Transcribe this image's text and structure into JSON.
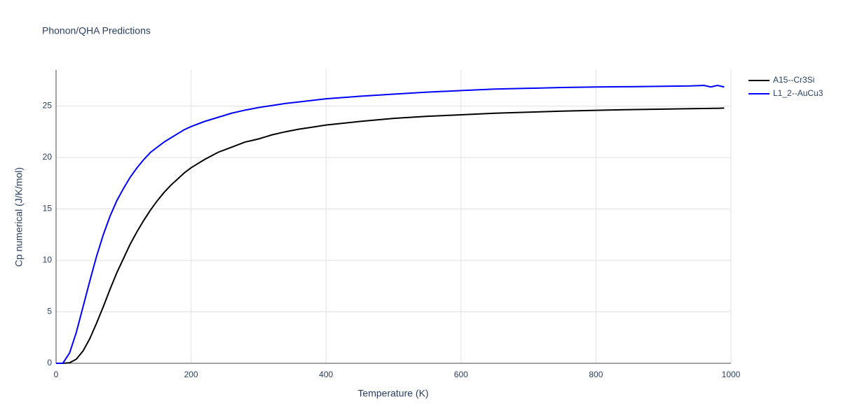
{
  "chart_data": {
    "type": "line",
    "title": "Phonon/QHA Predictions",
    "xlabel": "Temperature (K)",
    "ylabel": "Cp numerical (J/K/mol)",
    "x": [
      0,
      10,
      20,
      30,
      40,
      50,
      60,
      70,
      80,
      90,
      100,
      110,
      120,
      130,
      140,
      150,
      160,
      170,
      180,
      190,
      200,
      220,
      240,
      260,
      280,
      300,
      320,
      340,
      360,
      380,
      400,
      450,
      500,
      550,
      600,
      650,
      700,
      750,
      800,
      850,
      900,
      940,
      960,
      970,
      980,
      990
    ],
    "series": [
      {
        "name": "A15--Cr3Si",
        "color": "#000000",
        "values": [
          0,
          0,
          0.05,
          0.4,
          1.2,
          2.4,
          3.9,
          5.5,
          7.2,
          8.8,
          10.2,
          11.6,
          12.8,
          13.9,
          14.9,
          15.8,
          16.6,
          17.3,
          17.9,
          18.5,
          19.0,
          19.8,
          20.5,
          21.0,
          21.5,
          21.8,
          22.2,
          22.5,
          22.75,
          22.95,
          23.15,
          23.5,
          23.8,
          24.0,
          24.15,
          24.3,
          24.4,
          24.5,
          24.58,
          24.65,
          24.7,
          24.74,
          24.76,
          24.77,
          24.78,
          24.8
        ]
      },
      {
        "name": "L1_2--AuCu3",
        "color": "#0000ff",
        "values": [
          0,
          0,
          1.0,
          3.0,
          5.5,
          8.0,
          10.4,
          12.5,
          14.3,
          15.8,
          17.0,
          18.1,
          19.0,
          19.8,
          20.5,
          21.0,
          21.5,
          21.9,
          22.3,
          22.7,
          23.0,
          23.5,
          23.9,
          24.3,
          24.6,
          24.85,
          25.05,
          25.25,
          25.4,
          25.55,
          25.7,
          25.95,
          26.15,
          26.35,
          26.5,
          26.65,
          26.72,
          26.8,
          26.85,
          26.88,
          26.92,
          26.95,
          27.0,
          26.85,
          27.0,
          26.85
        ]
      }
    ],
    "xlim": [
      0,
      1000
    ],
    "xticks": [
      0,
      200,
      400,
      600,
      800,
      1000
    ],
    "ylim": [
      0,
      28.5
    ],
    "yticks": [
      0,
      5,
      10,
      15,
      20,
      25
    ],
    "grid": true,
    "legend": "top-right"
  }
}
